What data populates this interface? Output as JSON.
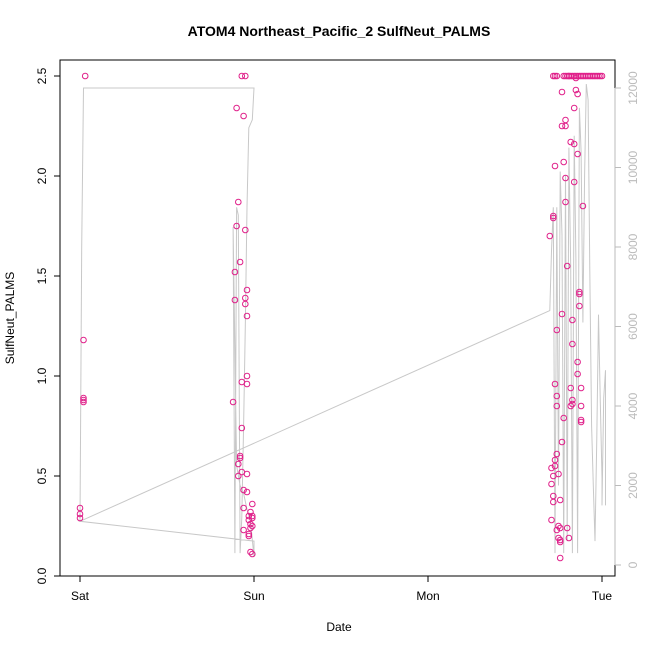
{
  "chart_data": {
    "type": "scatter",
    "title": "ATOM4 Northeast_Pacific_2 SulfNeut_PALMS",
    "xlabel": "Date",
    "ylabel": "SulfNeut_PALMS",
    "x_ticks": [
      "Sat",
      "Sun",
      "Mon",
      "Tue"
    ],
    "x_range_days": [
      0,
      3
    ],
    "ylim": [
      0,
      2.5
    ],
    "y_ticks": [
      "0.0",
      "0.5",
      "1.0",
      "1.5",
      "2.0",
      "2.5"
    ],
    "y2_ticks": [
      "0",
      "2000",
      "4000",
      "6000",
      "8000",
      "10000",
      "12000"
    ],
    "y2lim": [
      0,
      12000
    ],
    "colors": {
      "points": "#e0208a",
      "altitude_line": "#c8c8c8",
      "right_axis": "#bbbbbb"
    },
    "series": [
      {
        "values": [
          [
            0.0,
            0.29
          ],
          [
            0.0,
            0.31
          ],
          [
            0.0,
            0.34
          ],
          [
            0.02,
            1.18
          ],
          [
            0.02,
            0.87
          ],
          [
            0.02,
            0.88
          ],
          [
            0.02,
            0.89
          ],
          [
            0.03,
            2.5
          ],
          [
            0.88,
            0.87
          ],
          [
            0.89,
            1.38
          ],
          [
            0.89,
            1.52
          ],
          [
            0.9,
            2.34
          ],
          [
            0.9,
            1.75
          ],
          [
            0.91,
            0.5
          ],
          [
            0.91,
            0.56
          ],
          [
            0.91,
            1.87
          ],
          [
            0.92,
            0.59
          ],
          [
            0.92,
            0.6
          ],
          [
            0.92,
            1.57
          ],
          [
            0.93,
            0.74
          ],
          [
            0.93,
            0.97
          ],
          [
            0.93,
            0.52
          ],
          [
            0.93,
            2.5
          ],
          [
            0.94,
            0.43
          ],
          [
            0.94,
            0.34
          ],
          [
            0.94,
            0.23
          ],
          [
            0.94,
            2.3
          ],
          [
            0.95,
            1.36
          ],
          [
            0.95,
            1.39
          ],
          [
            0.95,
            1.73
          ],
          [
            0.95,
            2.5
          ],
          [
            0.96,
            1.3
          ],
          [
            0.96,
            0.96
          ],
          [
            0.96,
            1.0
          ],
          [
            0.96,
            1.43
          ],
          [
            0.96,
            0.42
          ],
          [
            0.96,
            0.51
          ],
          [
            0.97,
            0.3
          ],
          [
            0.97,
            0.28
          ],
          [
            0.97,
            0.2
          ],
          [
            0.97,
            0.21
          ],
          [
            0.98,
            0.12
          ],
          [
            0.98,
            0.26
          ],
          [
            0.98,
            0.32
          ],
          [
            0.98,
            0.24
          ],
          [
            0.99,
            0.29
          ],
          [
            0.99,
            0.36
          ],
          [
            0.99,
            0.3
          ],
          [
            0.99,
            0.25
          ],
          [
            0.99,
            0.11
          ],
          [
            2.7,
            1.7
          ],
          [
            2.71,
            0.28
          ],
          [
            2.71,
            0.46
          ],
          [
            2.71,
            0.54
          ],
          [
            2.72,
            0.5
          ],
          [
            2.72,
            0.37
          ],
          [
            2.72,
            0.4
          ],
          [
            2.72,
            1.79
          ],
          [
            2.72,
            1.8
          ],
          [
            2.73,
            2.05
          ],
          [
            2.73,
            0.96
          ],
          [
            2.73,
            0.55
          ],
          [
            2.73,
            0.58
          ],
          [
            2.74,
            0.61
          ],
          [
            2.74,
            0.9
          ],
          [
            2.74,
            0.85
          ],
          [
            2.74,
            1.23
          ],
          [
            2.74,
            0.23
          ],
          [
            2.75,
            0.51
          ],
          [
            2.75,
            0.25
          ],
          [
            2.75,
            0.19
          ],
          [
            2.76,
            0.17
          ],
          [
            2.76,
            0.18
          ],
          [
            2.76,
            0.09
          ],
          [
            2.76,
            0.38
          ],
          [
            2.76,
            0.24
          ],
          [
            2.77,
            2.25
          ],
          [
            2.77,
            2.42
          ],
          [
            2.77,
            1.31
          ],
          [
            2.77,
            0.67
          ],
          [
            2.78,
            0.79
          ],
          [
            2.78,
            2.07
          ],
          [
            2.79,
            1.87
          ],
          [
            2.79,
            1.99
          ],
          [
            2.79,
            2.28
          ],
          [
            2.79,
            2.25
          ],
          [
            2.8,
            1.55
          ],
          [
            2.8,
            0.24
          ],
          [
            2.81,
            0.19
          ],
          [
            2.81,
            2.5
          ],
          [
            2.82,
            2.17
          ],
          [
            2.82,
            0.94
          ],
          [
            2.82,
            0.85
          ],
          [
            2.83,
            1.16
          ],
          [
            2.83,
            1.28
          ],
          [
            2.83,
            0.86
          ],
          [
            2.83,
            0.88
          ],
          [
            2.84,
            1.97
          ],
          [
            2.84,
            2.34
          ],
          [
            2.84,
            2.16
          ],
          [
            2.85,
            2.43
          ],
          [
            2.85,
            2.49
          ],
          [
            2.86,
            2.41
          ],
          [
            2.86,
            2.11
          ],
          [
            2.86,
            1.07
          ],
          [
            2.86,
            1.01
          ],
          [
            2.87,
            1.35
          ],
          [
            2.87,
            1.42
          ],
          [
            2.87,
            1.41
          ],
          [
            2.88,
            0.94
          ],
          [
            2.88,
            0.85
          ],
          [
            2.88,
            0.77
          ],
          [
            2.88,
            0.78
          ],
          [
            2.89,
            1.85
          ],
          [
            2.72,
            2.5
          ],
          [
            2.73,
            2.5
          ],
          [
            2.74,
            2.5
          ],
          [
            2.78,
            2.5
          ],
          [
            2.79,
            2.5
          ],
          [
            2.8,
            2.5
          ],
          [
            2.81,
            2.5
          ],
          [
            2.82,
            2.5
          ],
          [
            2.83,
            2.5
          ],
          [
            2.84,
            2.5
          ],
          [
            2.85,
            2.5
          ],
          [
            2.86,
            2.5
          ],
          [
            2.87,
            2.5
          ],
          [
            2.88,
            2.5
          ],
          [
            2.89,
            2.5
          ],
          [
            2.9,
            2.5
          ],
          [
            2.91,
            2.5
          ],
          [
            2.92,
            2.5
          ],
          [
            2.93,
            2.5
          ],
          [
            2.94,
            2.5
          ],
          [
            2.95,
            2.5
          ],
          [
            2.96,
            2.5
          ],
          [
            2.97,
            2.5
          ],
          [
            2.98,
            2.5
          ],
          [
            2.99,
            2.5
          ],
          [
            3.0,
            2.5
          ]
        ]
      },
      {
        "axis": "right",
        "values": [
          [
            0.0,
            1100
          ],
          [
            0.01,
            8000
          ],
          [
            0.02,
            12000
          ],
          [
            0.5,
            12000
          ],
          [
            1.0,
            12000
          ],
          [
            0.99,
            11200
          ],
          [
            0.97,
            11000
          ],
          [
            0.96,
            9000
          ],
          [
            0.95,
            6000
          ],
          [
            0.94,
            3500
          ],
          [
            0.93,
            1200
          ],
          [
            0.92,
            300
          ],
          [
            0.91,
            8800
          ],
          [
            0.9,
            9000
          ],
          [
            0.89,
            300
          ],
          [
            0.88,
            8500
          ],
          [
            0.9,
            2500
          ],
          [
            0.92,
            2000
          ],
          [
            0.94,
            1800
          ],
          [
            0.96,
            1400
          ],
          [
            0.98,
            1100
          ],
          [
            1.0,
            200
          ],
          [
            1.0,
            600
          ],
          [
            0.0,
            1100
          ],
          [
            2.7,
            6400
          ],
          [
            2.71,
            7900
          ],
          [
            2.72,
            9000
          ],
          [
            2.73,
            300
          ],
          [
            2.74,
            9000
          ],
          [
            2.75,
            2000
          ],
          [
            2.76,
            9900
          ],
          [
            2.77,
            8300
          ],
          [
            2.78,
            300
          ],
          [
            2.79,
            9800
          ],
          [
            2.8,
            600
          ],
          [
            2.81,
            10500
          ],
          [
            2.82,
            7500
          ],
          [
            2.83,
            300
          ],
          [
            2.84,
            10800
          ],
          [
            2.85,
            7700
          ],
          [
            2.86,
            300
          ],
          [
            2.87,
            11500
          ],
          [
            2.88,
            10400
          ],
          [
            2.89,
            6100
          ],
          [
            2.9,
            9800
          ],
          [
            2.91,
            12100
          ],
          [
            2.92,
            11700
          ],
          [
            2.93,
            7400
          ],
          [
            2.94,
            3500
          ],
          [
            2.95,
            2000
          ],
          [
            2.96,
            600
          ],
          [
            2.97,
            3200
          ],
          [
            2.98,
            6300
          ],
          [
            2.99,
            4100
          ],
          [
            3.0,
            2200
          ],
          [
            3.0,
            1500
          ],
          [
            3.01,
            4200
          ],
          [
            3.02,
            4900
          ],
          [
            3.02,
            1500
          ]
        ]
      }
    ]
  }
}
